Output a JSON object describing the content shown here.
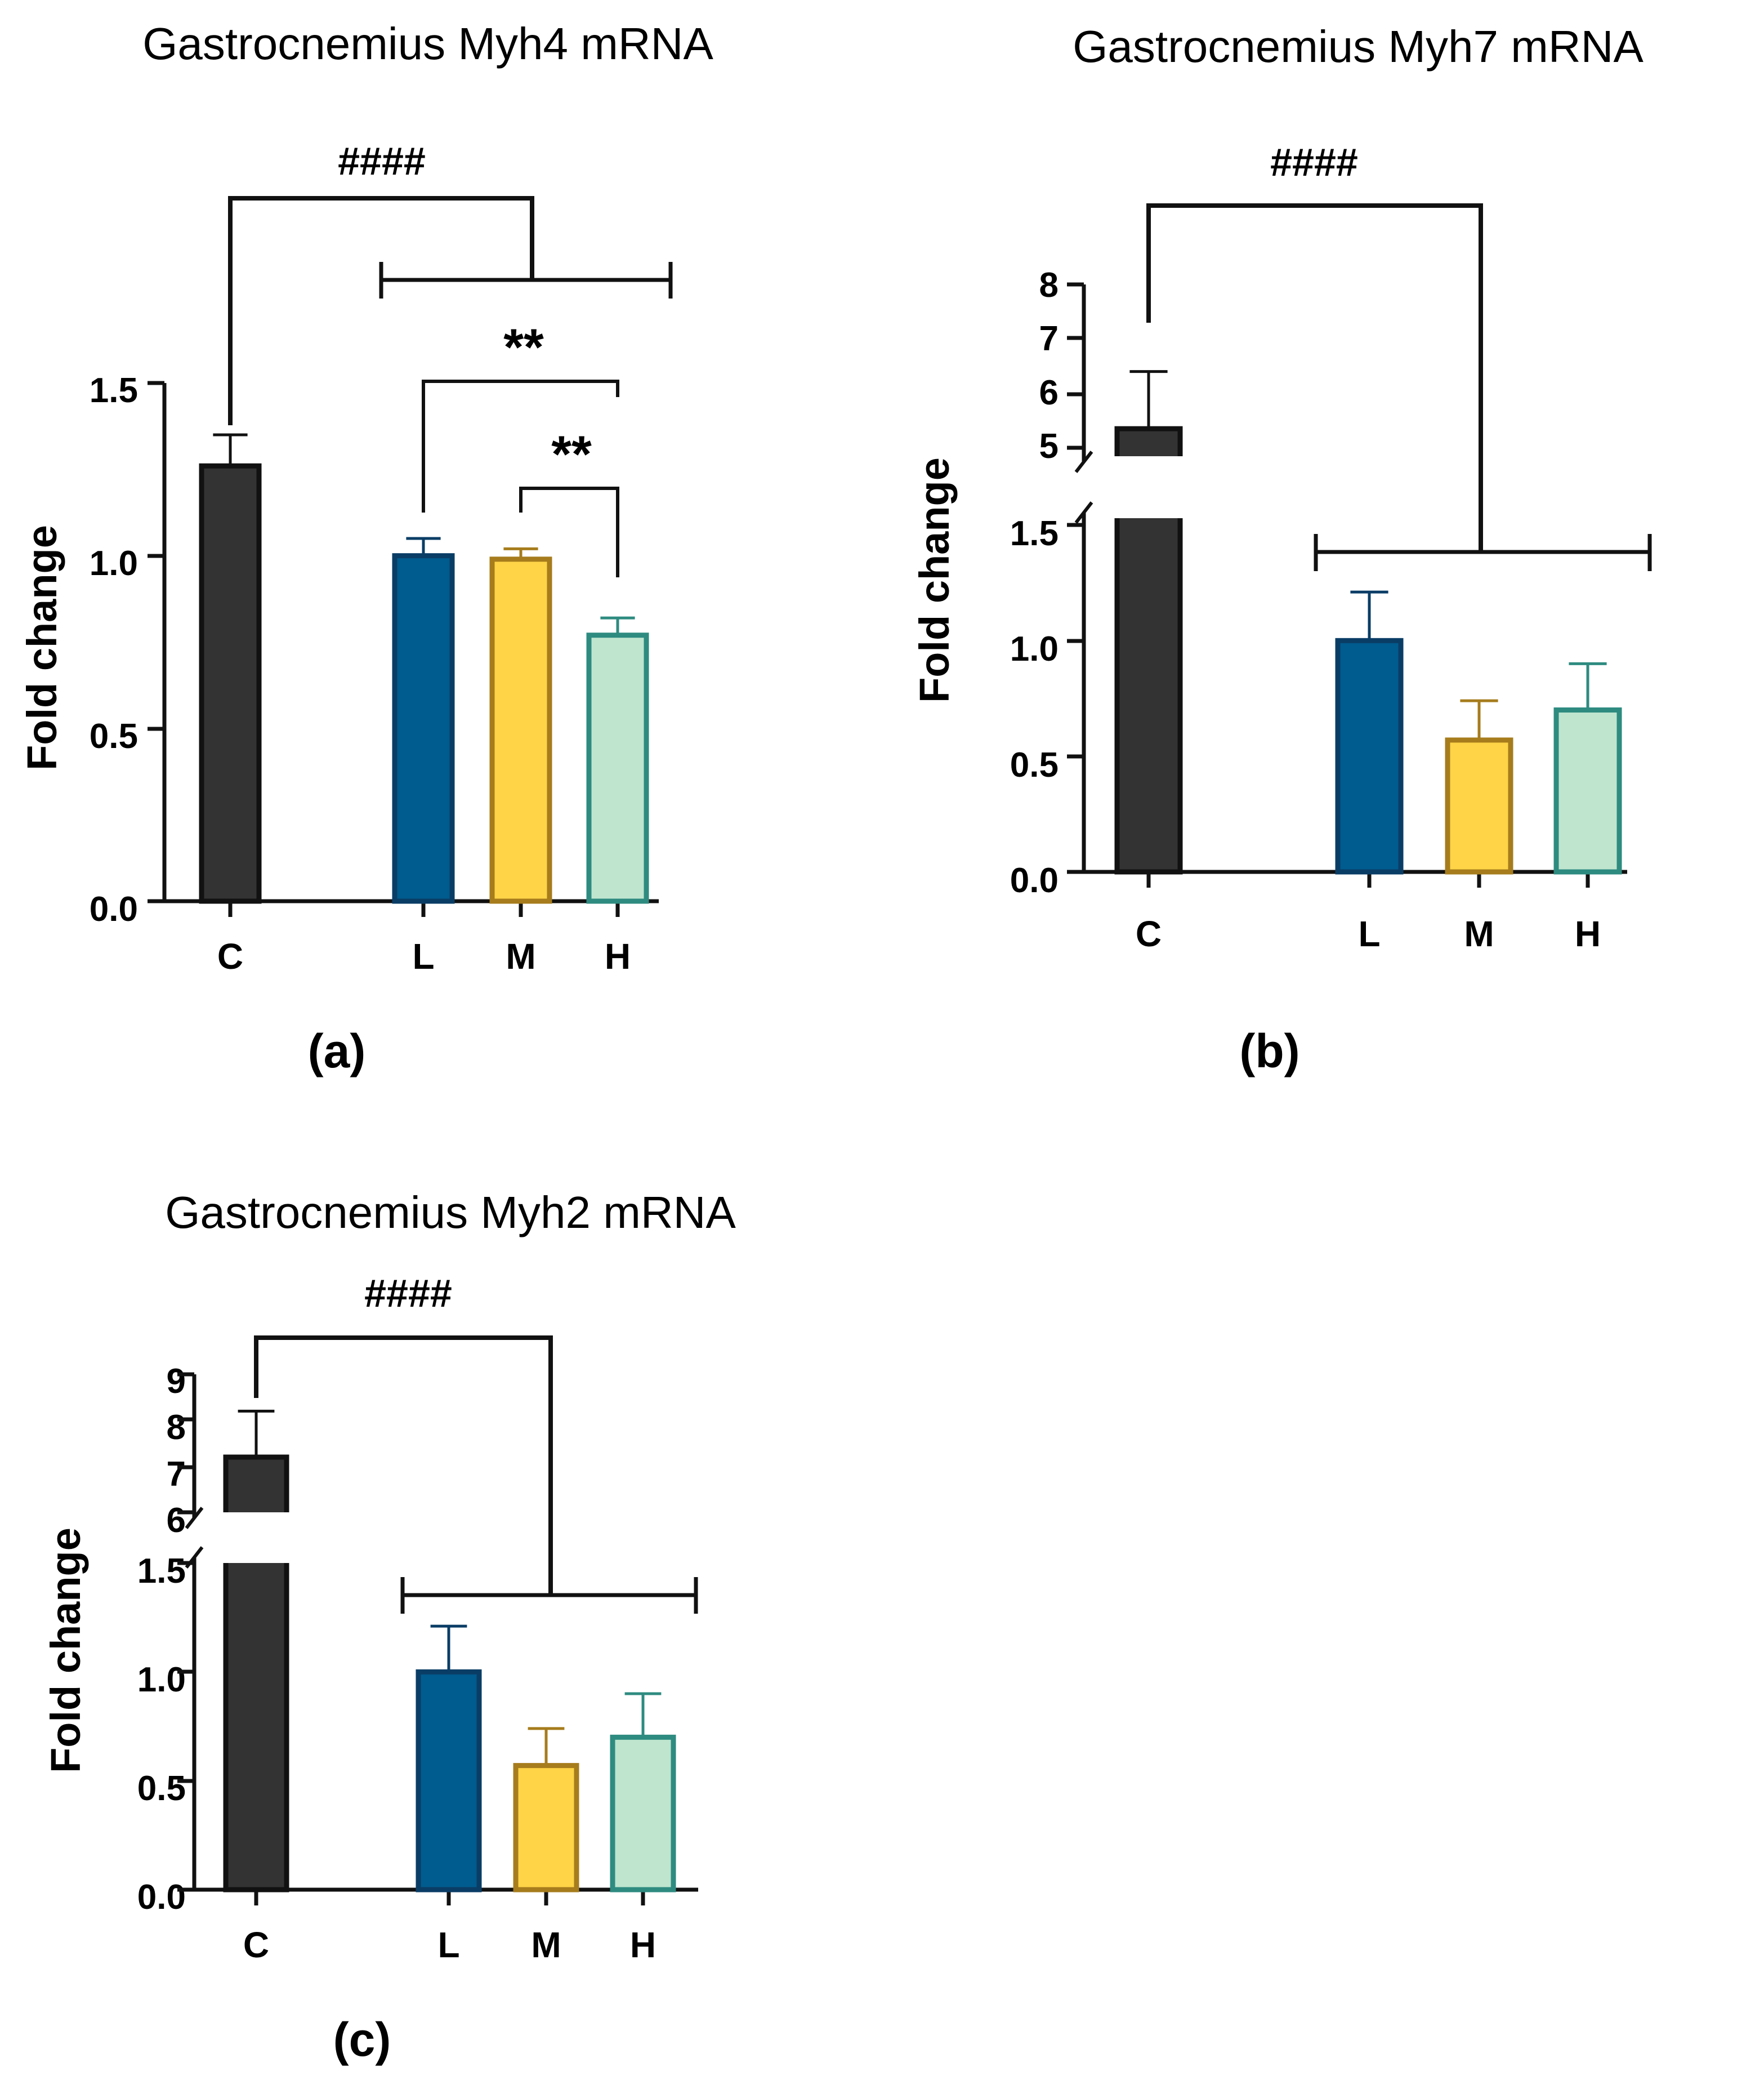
{
  "colors": {
    "C": {
      "fill": "#333333",
      "stroke": "#111111"
    },
    "L": {
      "fill": "#005b8e",
      "stroke": "#0a3d66"
    },
    "M": {
      "fill": "#ffd447",
      "stroke": "#a67c1c"
    },
    "H": {
      "fill": "#bfe5cf",
      "stroke": "#2e8b80"
    }
  },
  "chart_data": [
    {
      "type": "bar",
      "panel": "(a)",
      "title": "Gastrocnemius Myh4 mRNA",
      "ylabel": "Fold change",
      "categories": [
        "C",
        "L",
        "M",
        "H"
      ],
      "values": [
        1.26,
        1.0,
        0.99,
        0.77
      ],
      "errors": [
        0.09,
        0.05,
        0.03,
        0.05
      ],
      "ylim": [
        0,
        1.5
      ],
      "yticks": [
        "0.0",
        "0.5",
        "1.0",
        "1.5"
      ],
      "broken_axis": false,
      "significance": [
        {
          "label": "####",
          "from": "C",
          "to": [
            "L",
            "M",
            "H"
          ]
        },
        {
          "label": "**",
          "from": "L",
          "to": "H"
        },
        {
          "label": "**",
          "from": "M",
          "to": "H"
        }
      ]
    },
    {
      "type": "bar",
      "panel": "(b)",
      "title": "Gastrocnemius Myh7 mRNA",
      "ylabel": "Fold change",
      "categories": [
        "C",
        "L",
        "M",
        "H"
      ],
      "values": [
        5.35,
        1.0,
        0.57,
        0.7
      ],
      "errors": [
        1.05,
        0.21,
        0.17,
        0.2
      ],
      "ylim_lower": [
        0,
        1.5
      ],
      "ylim_upper": [
        5,
        8
      ],
      "yticks_lower": [
        "0.0",
        "0.5",
        "1.0",
        "1.5"
      ],
      "yticks_upper": [
        "5",
        "6",
        "7",
        "8"
      ],
      "broken_axis": true,
      "significance": [
        {
          "label": "####",
          "from": "C",
          "to": [
            "L",
            "M",
            "H"
          ]
        }
      ]
    },
    {
      "type": "bar",
      "panel": "(c)",
      "title": "Gastrocnemius Myh2 mRNA",
      "ylabel": "Fold change",
      "categories": [
        "C",
        "L",
        "M",
        "H"
      ],
      "values": [
        7.2,
        1.0,
        0.57,
        0.7
      ],
      "errors": [
        1.0,
        0.21,
        0.17,
        0.2
      ],
      "ylim_lower": [
        0,
        1.5
      ],
      "ylim_upper": [
        6,
        9
      ],
      "yticks_lower": [
        "0.0",
        "0.5",
        "1.0",
        "1.5"
      ],
      "yticks_upper": [
        "6",
        "7",
        "8",
        "9"
      ],
      "broken_axis": true,
      "significance": [
        {
          "label": "####",
          "from": "C",
          "to": [
            "L",
            "M",
            "H"
          ]
        }
      ]
    }
  ]
}
